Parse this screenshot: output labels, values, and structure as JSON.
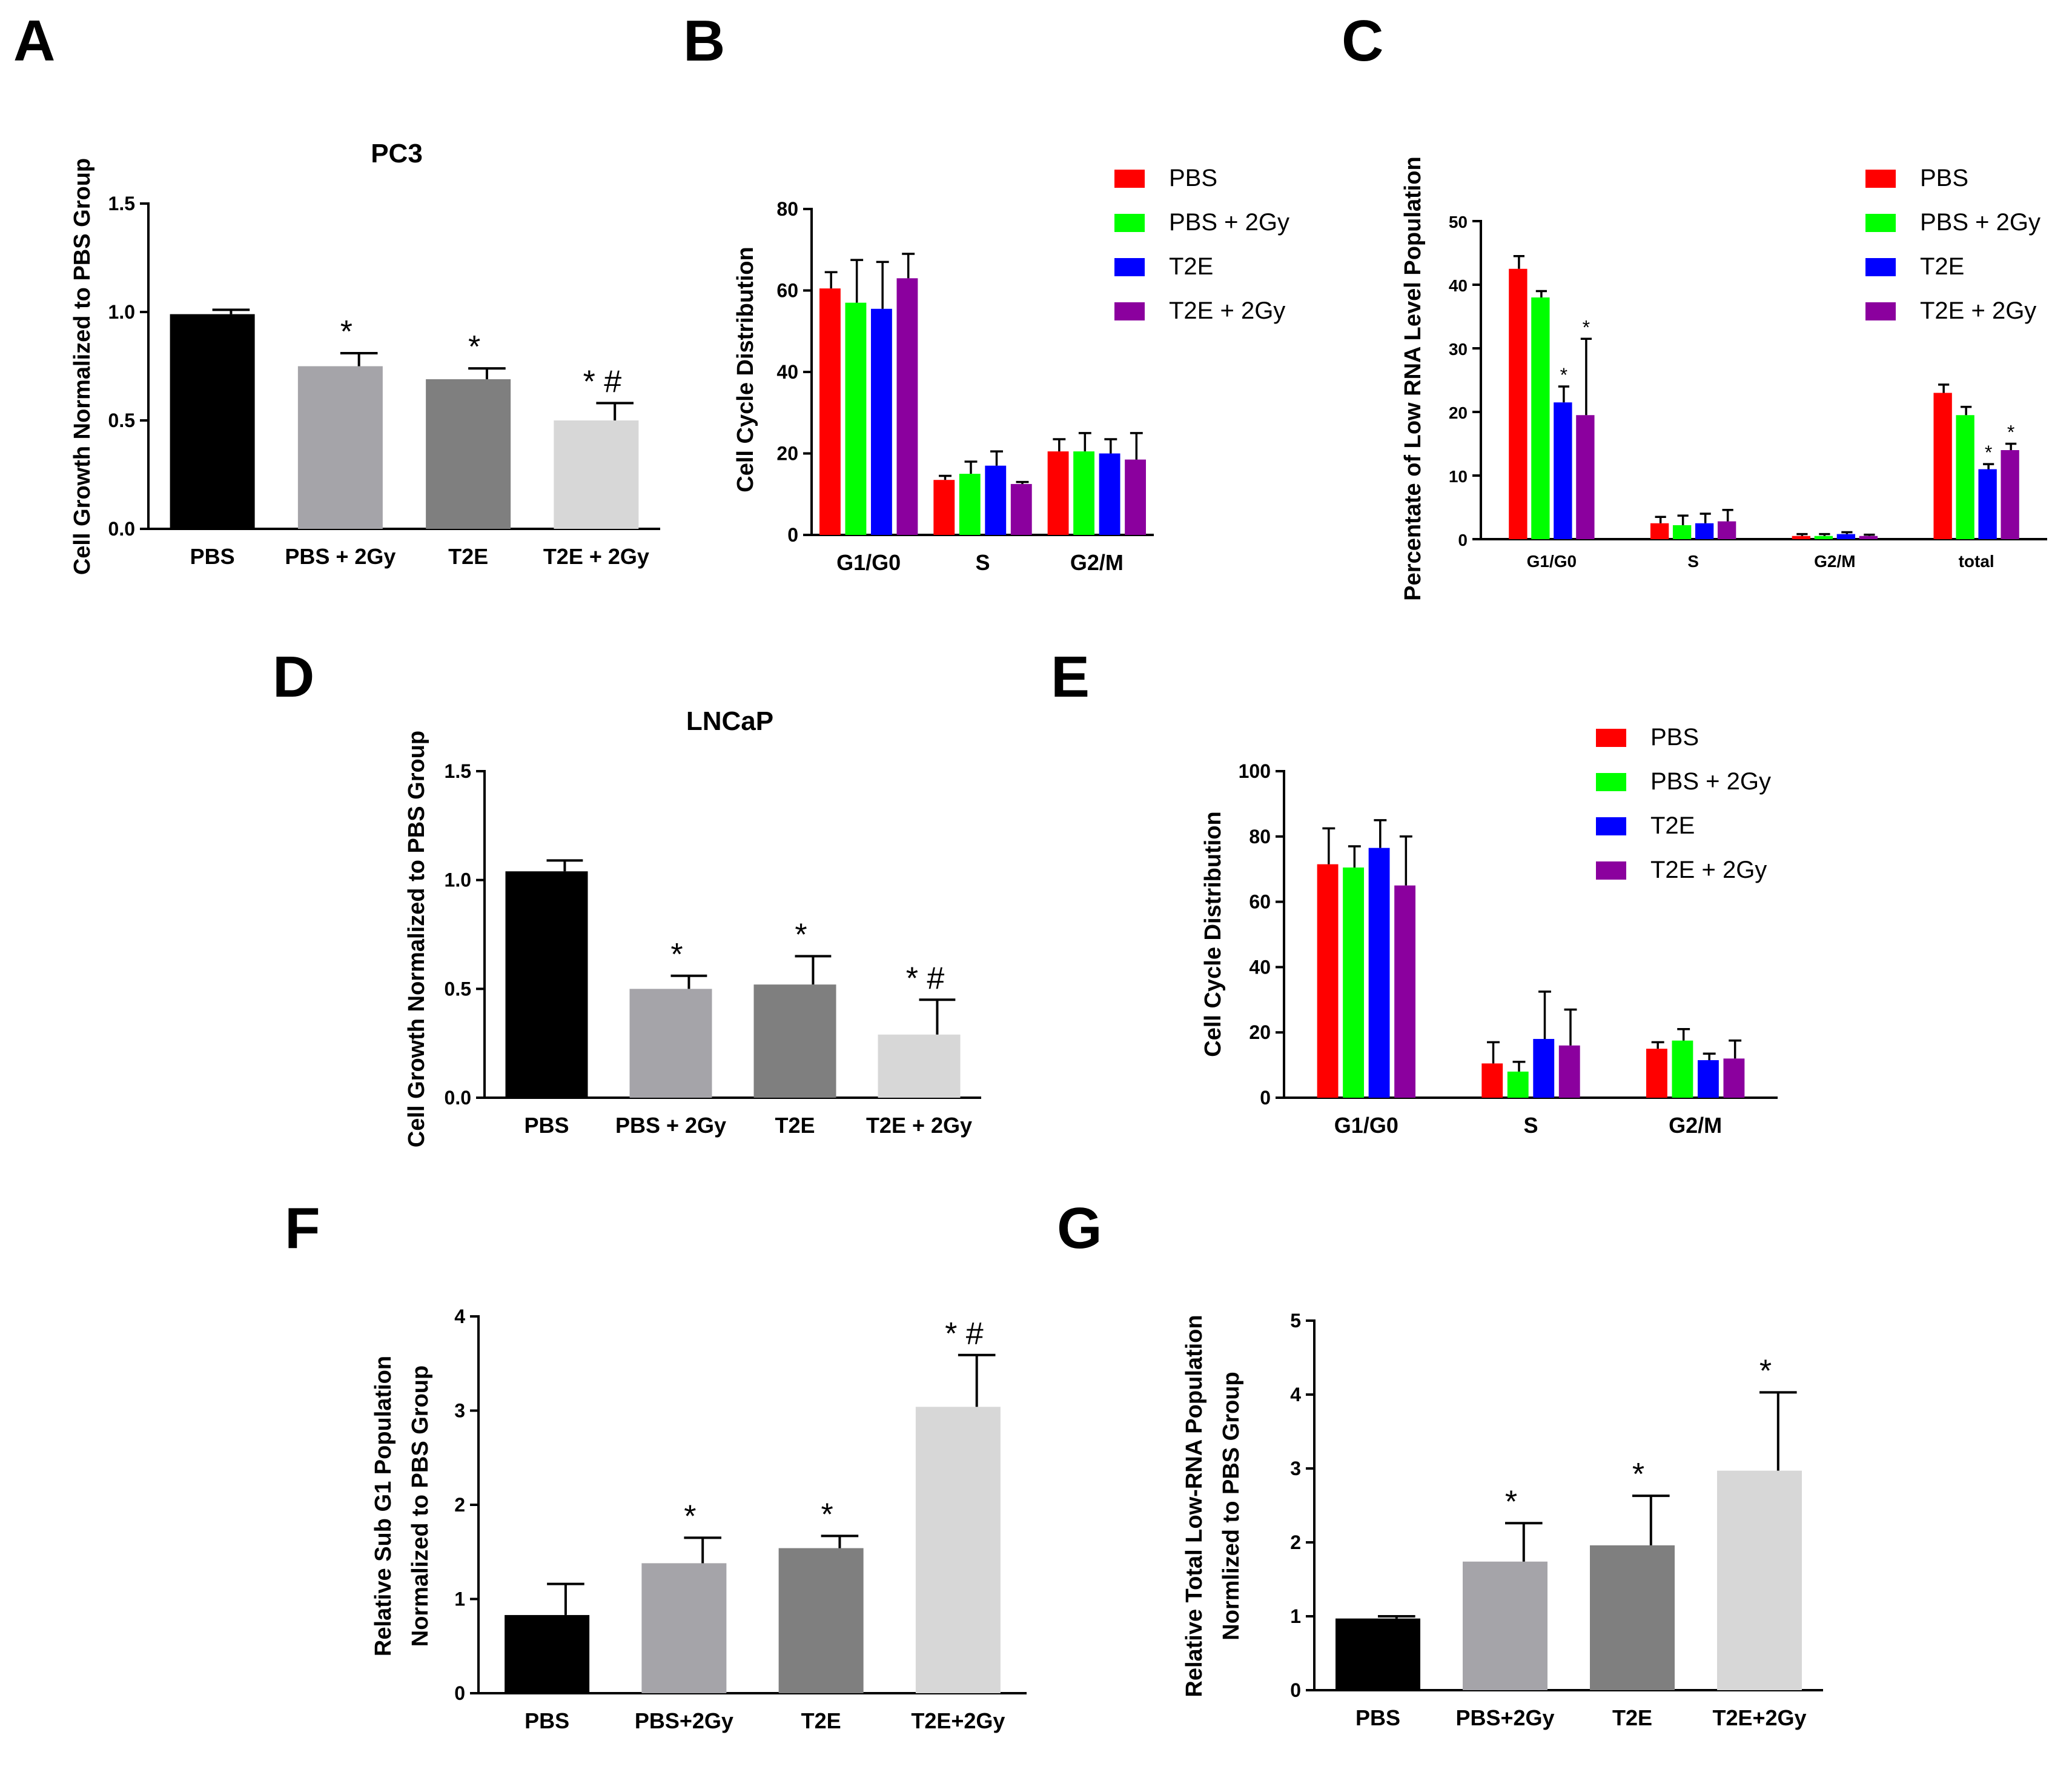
{
  "panel_labels": [
    "A",
    "B",
    "C",
    "D",
    "E",
    "F",
    "G"
  ],
  "legend_entries": [
    "PBS",
    "PBS + 2Gy",
    "T2E",
    "T2E + 2Gy"
  ],
  "colors": {
    "PBS": "#ff0000",
    "PBS + 2Gy": "#00ff00",
    "T2E": "#0000ff",
    "T2E + 2Gy": "#8b009e",
    "gray_black": "#000000",
    "gray_1": "#a5a4a9",
    "gray_2": "#7f7f7f",
    "gray_3": "#d7d7d7"
  },
  "chart_data": [
    {
      "id": "A",
      "type": "bar",
      "title": "PC3",
      "ylabel": "Cell Growth Normalized to PBS Group",
      "ylim": [
        0,
        1.5
      ],
      "yticks": [
        "0.0",
        "0.5",
        "1.0",
        "1.5"
      ],
      "categories": [
        "PBS",
        "PBS + 2Gy",
        "T2E",
        "T2E + 2Gy"
      ],
      "values": [
        0.99,
        0.75,
        0.69,
        0.5
      ],
      "errors": [
        0.02,
        0.06,
        0.05,
        0.08
      ],
      "annotations": [
        "",
        "*",
        "*",
        "* #"
      ]
    },
    {
      "id": "B",
      "type": "bar",
      "title": "",
      "ylabel": "Cell Cycle Distribution",
      "ylim": [
        0,
        80
      ],
      "yticks": [
        "0",
        "20",
        "40",
        "60",
        "80"
      ],
      "categories": [
        "G1/G0",
        "S",
        "G2/M"
      ],
      "series": [
        {
          "name": "PBS",
          "values": [
            60.5,
            13.5,
            20.5
          ],
          "errors": [
            4,
            1,
            3
          ]
        },
        {
          "name": "PBS + 2Gy",
          "values": [
            57,
            15,
            20.5
          ],
          "errors": [
            10.5,
            3,
            4.5
          ]
        },
        {
          "name": "T2E",
          "values": [
            55.5,
            17,
            20
          ],
          "errors": [
            11.5,
            3.5,
            3.5
          ]
        },
        {
          "name": "T2E + 2Gy",
          "values": [
            63,
            12.5,
            18.5
          ],
          "errors": [
            6,
            0.5,
            6.5
          ]
        }
      ],
      "legend": "top-right"
    },
    {
      "id": "C",
      "type": "bar",
      "title": "",
      "ylabel": "Percentate of Low RNA Level Population",
      "ylim": [
        0,
        50
      ],
      "yticks": [
        "0",
        "10",
        "20",
        "30",
        "40",
        "50"
      ],
      "categories": [
        "G1/G0",
        "S",
        "G2/M",
        "total"
      ],
      "series": [
        {
          "name": "PBS",
          "values": [
            42.5,
            2.5,
            0.5,
            23
          ],
          "errors": [
            2,
            1,
            0.3,
            1.3
          ]
        },
        {
          "name": "PBS + 2Gy",
          "values": [
            38,
            2.2,
            0.5,
            19.5
          ],
          "errors": [
            1,
            1.5,
            0.3,
            1.3
          ]
        },
        {
          "name": "T2E",
          "values": [
            21.5,
            2.5,
            0.8,
            11
          ],
          "errors": [
            2.5,
            1.5,
            0.3,
            0.8
          ]
        },
        {
          "name": "T2E + 2Gy",
          "values": [
            19.5,
            2.8,
            0.5,
            14
          ],
          "errors": [
            12,
            1.8,
            0.2,
            1
          ]
        }
      ],
      "annotations": [
        [
          "",
          "",
          "*",
          "*"
        ],
        [
          "",
          "",
          "",
          ""
        ],
        [
          "",
          "",
          "",
          ""
        ],
        [
          "",
          "",
          "*",
          "*"
        ]
      ],
      "legend": "top-right"
    },
    {
      "id": "D",
      "type": "bar",
      "title": "LNCaP",
      "ylabel": "Cell Growth Normalized to PBS Group",
      "ylim": [
        0,
        1.5
      ],
      "yticks": [
        "0.0",
        "0.5",
        "1.0",
        "1.5"
      ],
      "categories": [
        "PBS",
        "PBS + 2Gy",
        "T2E",
        "T2E + 2Gy"
      ],
      "values": [
        1.04,
        0.5,
        0.52,
        0.29
      ],
      "errors": [
        0.05,
        0.06,
        0.13,
        0.16
      ],
      "annotations": [
        "",
        "*",
        "*",
        "* #"
      ]
    },
    {
      "id": "E",
      "type": "bar",
      "title": "",
      "ylabel": "Cell Cycle Distribution",
      "ylim": [
        0,
        100
      ],
      "yticks": [
        "0",
        "20",
        "40",
        "60",
        "80",
        "100"
      ],
      "categories": [
        "G1/G0",
        "S",
        "G2/M"
      ],
      "series": [
        {
          "name": "PBS",
          "values": [
            71.5,
            10.5,
            15
          ],
          "errors": [
            11,
            6.5,
            2
          ]
        },
        {
          "name": "PBS + 2Gy",
          "values": [
            70.5,
            8,
            17.5
          ],
          "errors": [
            6.5,
            3,
            3.5
          ]
        },
        {
          "name": "T2E",
          "values": [
            76.5,
            18,
            11.5
          ],
          "errors": [
            8.5,
            14.5,
            2
          ]
        },
        {
          "name": "T2E + 2Gy",
          "values": [
            65,
            16,
            12
          ],
          "errors": [
            15,
            11,
            5.5
          ]
        }
      ],
      "legend": "top-right"
    },
    {
      "id": "F",
      "type": "bar",
      "title": "",
      "ylabel": [
        "Relative Sub G1 Population",
        "Normalized to PBS Group"
      ],
      "ylim": [
        0,
        4
      ],
      "yticks": [
        "0",
        "1",
        "2",
        "3",
        "4"
      ],
      "categories": [
        "PBS",
        "PBS+2Gy",
        "T2E",
        "T2E+2Gy"
      ],
      "values": [
        0.83,
        1.38,
        1.54,
        3.04
      ],
      "errors": [
        0.33,
        0.27,
        0.13,
        0.55
      ],
      "annotations": [
        "",
        "*",
        "*",
        "* #"
      ]
    },
    {
      "id": "G",
      "type": "bar",
      "title": "",
      "ylabel": [
        "Relative Total Low-RNA Population",
        "Normlized to PBS Group"
      ],
      "ylim": [
        0,
        5
      ],
      "yticks": [
        "0",
        "1",
        "2",
        "3",
        "4",
        "5"
      ],
      "categories": [
        "PBS",
        "PBS+2Gy",
        "T2E",
        "T2E+2Gy"
      ],
      "values": [
        0.97,
        1.74,
        1.96,
        2.97
      ],
      "errors": [
        0.03,
        0.52,
        0.67,
        1.06
      ],
      "annotations": [
        "",
        "*",
        "*",
        "*"
      ]
    }
  ]
}
